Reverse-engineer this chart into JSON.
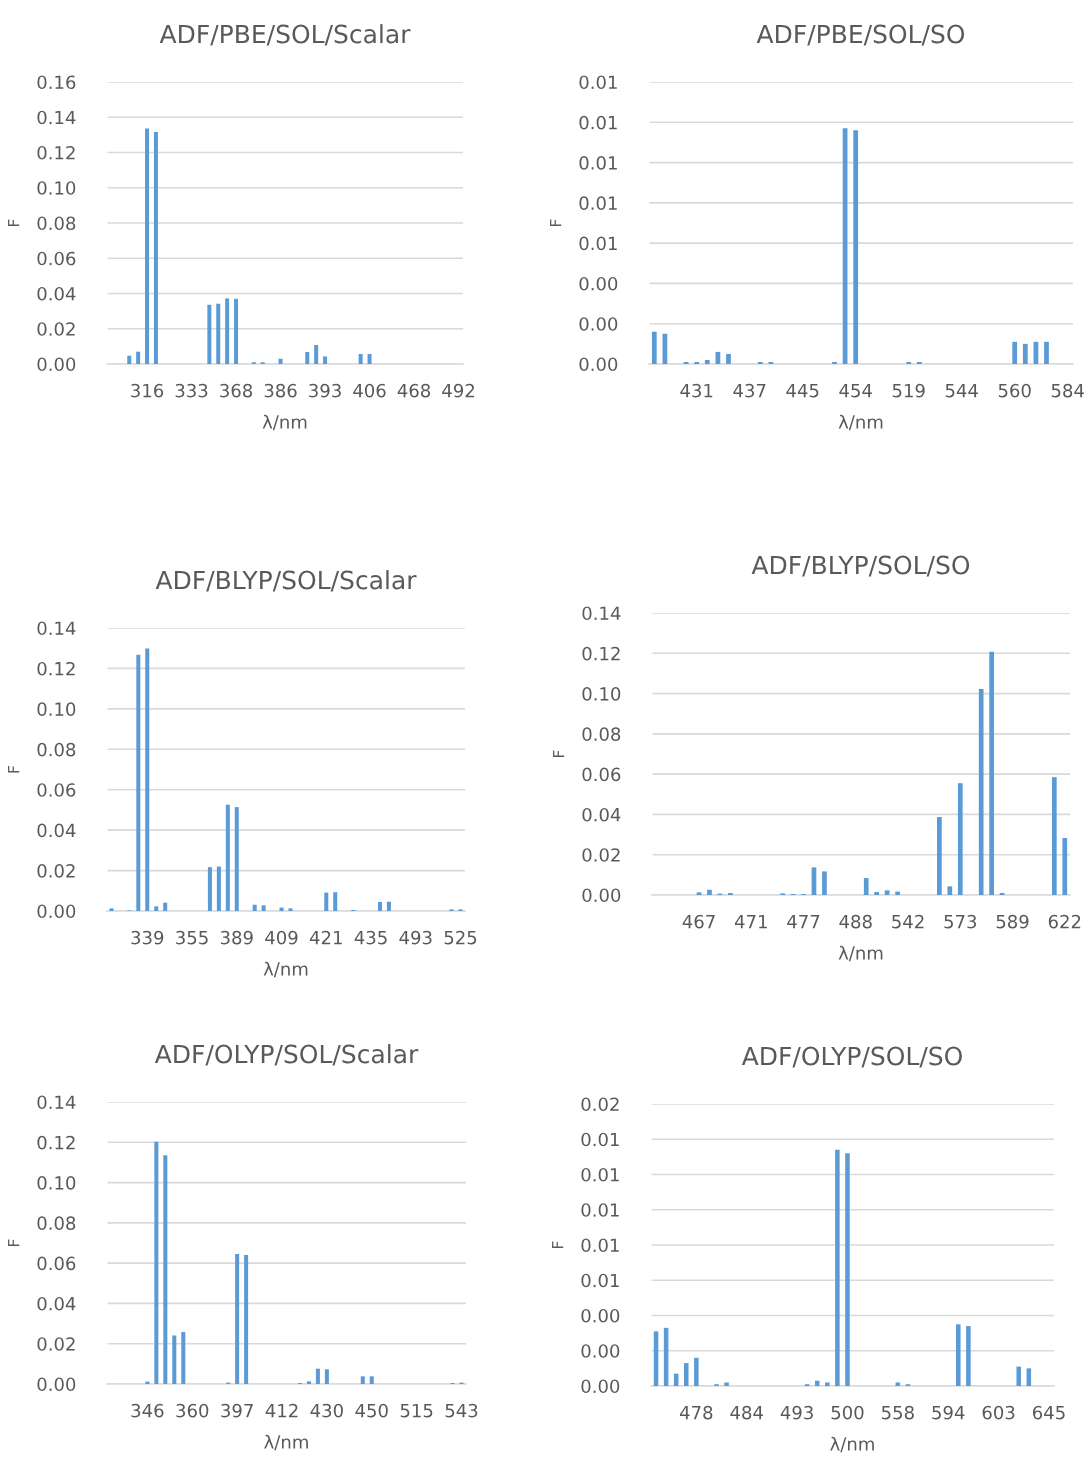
{
  "chart_data": [
    {
      "type": "bar",
      "title": "ADF/PBE/SOL/Scalar",
      "xlabel": "λ/nm",
      "ylabel": "F",
      "grid": "y",
      "categories": [
        null,
        null,
        null,
        null,
        "316",
        null,
        null,
        null,
        null,
        "333",
        null,
        null,
        null,
        null,
        "368",
        null,
        null,
        null,
        null,
        "386",
        null,
        null,
        null,
        null,
        "393",
        null,
        null,
        null,
        null,
        "406",
        null,
        null,
        null,
        null,
        "468",
        null,
        null,
        null,
        null,
        "492"
      ],
      "series": [
        {
          "color": "#5b9bd5",
          "values": [
            0,
            0,
            0.0047,
            0.007,
            0.1336,
            0.1317,
            0,
            0,
            0,
            0,
            0,
            0.0336,
            0.0342,
            0.0372,
            0.037,
            0,
            0.001,
            0.001,
            0,
            0.003,
            0,
            0,
            0.0068,
            0.0108,
            0.0043,
            0,
            0,
            0,
            0.0057,
            0.0057,
            0,
            0,
            0,
            0,
            0,
            0,
            0,
            0,
            0,
            0
          ]
        }
      ],
      "ylim": [
        0,
        0.16
      ],
      "yticks": [
        {
          "value": 0,
          "label": "0.00"
        },
        {
          "value": 0.02,
          "label": "0.02"
        },
        {
          "value": 0.04,
          "label": "0.04"
        },
        {
          "value": 0.06,
          "label": "0.06"
        },
        {
          "value": 0.08,
          "label": "0.08"
        },
        {
          "value": 0.1,
          "label": "0.10"
        },
        {
          "value": 0.12,
          "label": "0.12"
        },
        {
          "value": 0.14,
          "label": "0.14"
        },
        {
          "value": 0.16,
          "label": "0.16"
        }
      ]
    },
    {
      "type": "bar",
      "title": "ADF/PBE/SOL/SO",
      "xlabel": "λ/nm",
      "ylabel": "F",
      "grid": "y",
      "categories": [
        null,
        null,
        null,
        null,
        "431",
        null,
        null,
        null,
        null,
        "437",
        null,
        null,
        null,
        null,
        "445",
        null,
        null,
        null,
        null,
        "454",
        null,
        null,
        null,
        null,
        "519",
        null,
        null,
        null,
        null,
        "544",
        null,
        null,
        null,
        null,
        "560",
        null,
        null,
        null,
        null,
        "584"
      ],
      "series": [
        {
          "color": "#5b9bd5",
          "values": [
            0.0016,
            0.0015,
            0,
            0.0001,
            0.0001,
            0.0002,
            0.0006,
            0.0005,
            0,
            0,
            0.0001,
            0.0001,
            0,
            0,
            0,
            0,
            0,
            0.0001,
            0.0117,
            0.0116,
            0,
            0,
            0,
            0,
            0.0001,
            0.0001,
            0,
            0,
            0,
            0,
            0,
            0,
            0,
            0,
            0.0011,
            0.001,
            0.0011,
            0.0011,
            0,
            0
          ]
        }
      ],
      "ylim": [
        0,
        0.014
      ],
      "yticks": [
        {
          "value": 0,
          "label": "0.00"
        },
        {
          "value": 0.002,
          "label": "0.00"
        },
        {
          "value": 0.004,
          "label": "0.00"
        },
        {
          "value": 0.006,
          "label": "0.01"
        },
        {
          "value": 0.008,
          "label": "0.01"
        },
        {
          "value": 0.01,
          "label": "0.01"
        },
        {
          "value": 0.012,
          "label": "0.01"
        },
        {
          "value": 0.014,
          "label": "0.01"
        }
      ]
    },
    {
      "type": "bar",
      "title": "ADF/BLYP/SOL/Scalar",
      "xlabel": "λ/nm",
      "ylabel": "F",
      "grid": "y",
      "categories": [
        null,
        null,
        null,
        null,
        "339",
        null,
        null,
        null,
        null,
        "355",
        null,
        null,
        null,
        null,
        "389",
        null,
        null,
        null,
        null,
        "409",
        null,
        null,
        null,
        null,
        "421",
        null,
        null,
        null,
        null,
        "435",
        null,
        null,
        null,
        null,
        "493",
        null,
        null,
        null,
        null,
        "525"
      ],
      "series": [
        {
          "color": "#5b9bd5",
          "values": [
            0.0013,
            0,
            0.0003,
            0.1268,
            0.1299,
            0.0023,
            0.0041,
            0,
            0,
            0,
            0,
            0.0217,
            0.022,
            0.0526,
            0.0514,
            0,
            0.0031,
            0.0028,
            0,
            0.0017,
            0.0013,
            0,
            0,
            0,
            0.0091,
            0.0093,
            0,
            0.0005,
            0,
            0,
            0.0045,
            0.0046,
            0,
            0,
            0,
            0,
            0,
            0,
            0.0008,
            0.0008
          ]
        }
      ],
      "ylim": [
        0,
        0.14
      ],
      "yticks": [
        {
          "value": 0,
          "label": "0.00"
        },
        {
          "value": 0.02,
          "label": "0.02"
        },
        {
          "value": 0.04,
          "label": "0.04"
        },
        {
          "value": 0.06,
          "label": "0.06"
        },
        {
          "value": 0.08,
          "label": "0.08"
        },
        {
          "value": 0.1,
          "label": "0.10"
        },
        {
          "value": 0.12,
          "label": "0.12"
        },
        {
          "value": 0.14,
          "label": "0.14"
        }
      ]
    },
    {
      "type": "bar",
      "title": "ADF/BLYP/SOL/SO",
      "xlabel": "λ/nm",
      "ylabel": "F",
      "grid": "y",
      "categories": [
        null,
        null,
        null,
        null,
        "467",
        null,
        null,
        null,
        null,
        "471",
        null,
        null,
        null,
        null,
        "477",
        null,
        null,
        null,
        null,
        "488",
        null,
        null,
        null,
        null,
        "542",
        null,
        null,
        null,
        null,
        "573",
        null,
        null,
        null,
        null,
        "589",
        null,
        null,
        null,
        null,
        "622"
      ],
      "series": [
        {
          "color": "#5b9bd5",
          "values": [
            0,
            0,
            0,
            0,
            0.0013,
            0.0026,
            0.0007,
            0.001,
            0,
            0,
            0,
            0,
            0.0008,
            0.0005,
            0.0005,
            0.0137,
            0.0117,
            0,
            0,
            0,
            0.0084,
            0.0015,
            0.0023,
            0.0017,
            0,
            0,
            0,
            0.0387,
            0.0043,
            0.0555,
            0,
            0.1023,
            0.1208,
            0.001,
            0,
            0,
            0,
            0,
            0.0585,
            0.0283
          ]
        }
      ],
      "ylim": [
        0,
        0.14
      ],
      "yticks": [
        {
          "value": 0,
          "label": "0.00"
        },
        {
          "value": 0.02,
          "label": "0.02"
        },
        {
          "value": 0.04,
          "label": "0.04"
        },
        {
          "value": 0.06,
          "label": "0.06"
        },
        {
          "value": 0.08,
          "label": "0.08"
        },
        {
          "value": 0.1,
          "label": "0.10"
        },
        {
          "value": 0.12,
          "label": "0.12"
        },
        {
          "value": 0.14,
          "label": "0.14"
        }
      ]
    },
    {
      "type": "bar",
      "title": "ADF/OLYP/SOL/Scalar",
      "xlabel": "λ/nm",
      "ylabel": "F",
      "grid": "y",
      "categories": [
        null,
        null,
        null,
        null,
        "346",
        null,
        null,
        null,
        null,
        "360",
        null,
        null,
        null,
        null,
        "397",
        null,
        null,
        null,
        null,
        "412",
        null,
        null,
        null,
        null,
        "430",
        null,
        null,
        null,
        null,
        "450",
        null,
        null,
        null,
        null,
        "515",
        null,
        null,
        null,
        null,
        "543"
      ],
      "series": [
        {
          "color": "#5b9bd5",
          "values": [
            0,
            0,
            0,
            0,
            0.0012,
            0.1203,
            0.1136,
            0.0241,
            0.0258,
            0,
            0,
            0,
            0,
            0.0007,
            0.0646,
            0.0641,
            0,
            0,
            0,
            0,
            0,
            0.0005,
            0.0013,
            0.0076,
            0.0073,
            0,
            0,
            0,
            0.0038,
            0.0038,
            0,
            0,
            0,
            0,
            0,
            0,
            0,
            0,
            0.0005,
            0.0007
          ]
        }
      ],
      "ylim": [
        0,
        0.14
      ],
      "yticks": [
        {
          "value": 0,
          "label": "0.00"
        },
        {
          "value": 0.02,
          "label": "0.02"
        },
        {
          "value": 0.04,
          "label": "0.04"
        },
        {
          "value": 0.06,
          "label": "0.06"
        },
        {
          "value": 0.08,
          "label": "0.08"
        },
        {
          "value": 0.1,
          "label": "0.10"
        },
        {
          "value": 0.12,
          "label": "0.12"
        },
        {
          "value": 0.14,
          "label": "0.14"
        }
      ]
    },
    {
      "type": "bar",
      "title": "ADF/OLYP/SOL/SO",
      "xlabel": "λ/nm",
      "ylabel": "F",
      "grid": "y",
      "categories": [
        null,
        null,
        null,
        null,
        "478",
        null,
        null,
        null,
        null,
        "484",
        null,
        null,
        null,
        null,
        "493",
        null,
        null,
        null,
        null,
        "500",
        null,
        null,
        null,
        null,
        "558",
        null,
        null,
        null,
        null,
        "594",
        null,
        null,
        null,
        null,
        "603",
        null,
        null,
        null,
        null,
        "645"
      ],
      "series": [
        {
          "color": "#5b9bd5",
          "values": [
            0.0031,
            0.0033,
            0.0007,
            0.0013,
            0.0016,
            0,
            0.0001,
            0.0002,
            0,
            0,
            0,
            0,
            0,
            0,
            0,
            0.0001,
            0.0003,
            0.0002,
            0.0134,
            0.0132,
            0,
            0,
            0,
            0,
            0.0002,
            0.0001,
            0,
            0,
            0,
            0,
            0.0035,
            0.0034,
            0,
            0,
            0,
            0,
            0.0011,
            0.001,
            0,
            0
          ]
        }
      ],
      "ylim": [
        0,
        0.016
      ],
      "yticks": [
        {
          "value": 0,
          "label": "0.00"
        },
        {
          "value": 0.002,
          "label": "0.00"
        },
        {
          "value": 0.004,
          "label": "0.00"
        },
        {
          "value": 0.006,
          "label": "0.01"
        },
        {
          "value": 0.008,
          "label": "0.01"
        },
        {
          "value": 0.01,
          "label": "0.01"
        },
        {
          "value": 0.012,
          "label": "0.01"
        },
        {
          "value": 0.014,
          "label": "0.01"
        },
        {
          "value": 0.016,
          "label": "0.02"
        }
      ]
    }
  ]
}
